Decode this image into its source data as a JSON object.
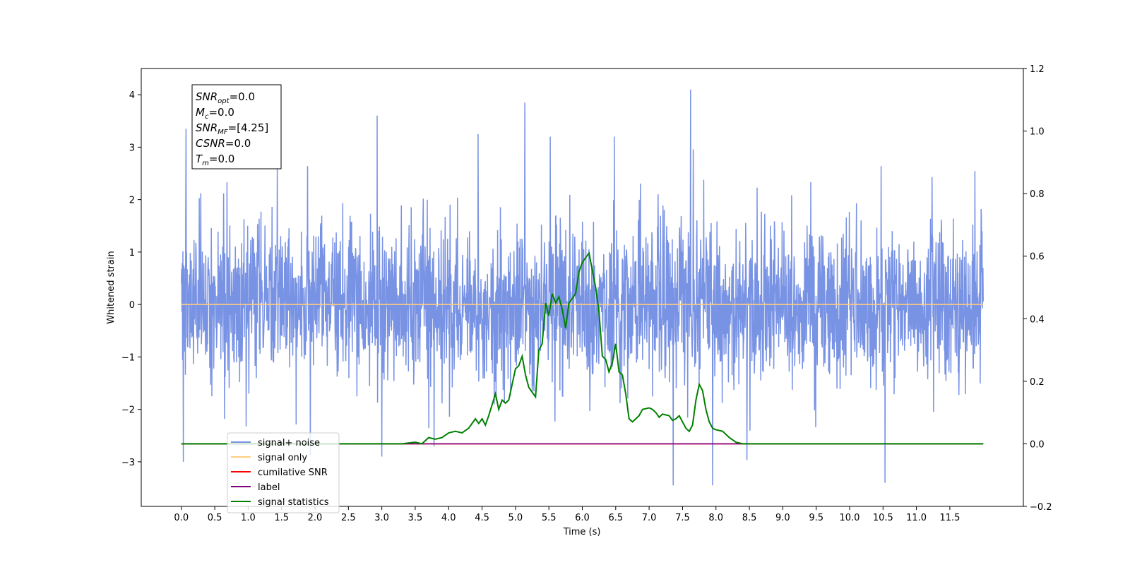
{
  "chart_data": {
    "type": "line",
    "xlabel": "Time (s)",
    "ylabel": "Whitened strain",
    "xlim": [
      -0.6,
      12.6
    ],
    "ylim": [
      -3.85,
      4.5
    ],
    "y2lim": [
      -0.2,
      1.2
    ],
    "x_ticks": [
      "0.0",
      "0.5",
      "1.0",
      "1.5",
      "2.0",
      "2.5",
      "3.0",
      "3.5",
      "4.0",
      "4.5",
      "5.0",
      "5.5",
      "6.0",
      "6.5",
      "7.0",
      "7.5",
      "8.0",
      "8.5",
      "9.0",
      "9.5",
      "10.0",
      "10.5",
      "11.0",
      "11.5"
    ],
    "y_ticks": [
      "4",
      "3",
      "2",
      "1",
      "0",
      "−1",
      "−2",
      "−3"
    ],
    "y2_ticks": [
      "1.2",
      "1.0",
      "0.8",
      "0.6",
      "0.4",
      "0.2",
      "0.0",
      "−0.2"
    ],
    "annotation": {
      "lines": [
        {
          "base": "SNR",
          "sub": "opt",
          "rest": "=0.0"
        },
        {
          "base": "M",
          "sub": "c",
          "rest": "=0.0"
        },
        {
          "base": "SNR",
          "sub": "MF",
          "rest": "=[4.25]"
        },
        {
          "base": "CSNR",
          "sub": "",
          "rest": "=0.0"
        },
        {
          "base": "T",
          "sub": "m",
          "rest": "=0.0"
        }
      ]
    },
    "legend": {
      "placement": "lower-left",
      "entries": [
        {
          "label": "signal+ noise",
          "color": "#7892e4"
        },
        {
          "label": "signal only",
          "color": "#ffcc80"
        },
        {
          "label": "cumilative SNR",
          "color": "#ff0000"
        },
        {
          "label": "label",
          "color": "#800080"
        },
        {
          "label": "signal statistics",
          "color": "#008000"
        }
      ]
    },
    "series": [
      {
        "name": "signal+ noise",
        "axis": "left",
        "color": "#7892e4",
        "description_stats": {
          "x_range": [
            0.0,
            12.0
          ],
          "typical_band": [
            -1.8,
            1.8
          ],
          "max": 4.1,
          "min": -3.45
        },
        "notable_peaks": [
          [
            0.07,
            3.35
          ],
          [
            2.93,
            3.6
          ],
          [
            4.44,
            3.25
          ],
          [
            5.14,
            3.85
          ],
          [
            5.52,
            3.2
          ],
          [
            6.48,
            3.2
          ],
          [
            7.62,
            4.1
          ],
          [
            0.03,
            -3.0
          ],
          [
            7.36,
            -3.45
          ],
          [
            7.95,
            -3.45
          ],
          [
            10.53,
            -3.4
          ],
          [
            3.0,
            -2.9
          ]
        ]
      },
      {
        "name": "signal only",
        "axis": "left",
        "color": "#ffcc80",
        "x": [
          0.0,
          12.0
        ],
        "y": [
          0.0,
          0.0
        ]
      },
      {
        "name": "cumilative SNR",
        "axis": "right",
        "color": "#ff0000",
        "x": [
          0.0,
          12.0
        ],
        "y": [
          0.0,
          0.0
        ]
      },
      {
        "name": "label",
        "axis": "right",
        "color": "#800080",
        "x": [
          0.0,
          12.0
        ],
        "y": [
          0.0,
          0.0
        ]
      },
      {
        "name": "signal statistics",
        "axis": "right",
        "color": "#008000",
        "x": [
          0.0,
          2.5,
          3.0,
          3.3,
          3.5,
          3.6,
          3.7,
          3.8,
          3.9,
          4.0,
          4.1,
          4.2,
          4.3,
          4.4,
          4.45,
          4.5,
          4.55,
          4.6,
          4.7,
          4.75,
          4.8,
          4.85,
          4.9,
          5.0,
          5.05,
          5.1,
          5.15,
          5.2,
          5.3,
          5.35,
          5.4,
          5.45,
          5.5,
          5.55,
          5.6,
          5.65,
          5.7,
          5.75,
          5.8,
          5.9,
          5.95,
          6.0,
          6.1,
          6.2,
          6.25,
          6.3,
          6.35,
          6.4,
          6.45,
          6.5,
          6.55,
          6.6,
          6.65,
          6.7,
          6.75,
          6.8,
          6.85,
          6.9,
          7.0,
          7.05,
          7.1,
          7.15,
          7.2,
          7.3,
          7.35,
          7.4,
          7.45,
          7.5,
          7.55,
          7.6,
          7.65,
          7.7,
          7.75,
          7.8,
          7.85,
          7.9,
          7.95,
          8.0,
          8.1,
          8.2,
          8.3,
          8.4,
          8.5,
          8.6,
          8.7,
          8.8,
          9.0,
          12.0
        ],
        "y": [
          0.0,
          0.0,
          0.0,
          0.0,
          0.005,
          0.0,
          0.02,
          0.015,
          0.02,
          0.035,
          0.04,
          0.035,
          0.05,
          0.08,
          0.065,
          0.08,
          0.06,
          0.09,
          0.16,
          0.11,
          0.14,
          0.13,
          0.14,
          0.24,
          0.25,
          0.28,
          0.22,
          0.18,
          0.15,
          0.3,
          0.32,
          0.45,
          0.41,
          0.48,
          0.45,
          0.47,
          0.43,
          0.37,
          0.45,
          0.48,
          0.55,
          0.58,
          0.61,
          0.5,
          0.42,
          0.28,
          0.27,
          0.23,
          0.26,
          0.32,
          0.23,
          0.22,
          0.16,
          0.08,
          0.07,
          0.08,
          0.09,
          0.11,
          0.115,
          0.11,
          0.1,
          0.085,
          0.095,
          0.09,
          0.075,
          0.08,
          0.09,
          0.07,
          0.05,
          0.04,
          0.06,
          0.14,
          0.19,
          0.17,
          0.11,
          0.07,
          0.05,
          0.045,
          0.04,
          0.02,
          0.005,
          0.0,
          0.0,
          0.0,
          0.0,
          0.0,
          0.0,
          0.0
        ]
      }
    ]
  }
}
